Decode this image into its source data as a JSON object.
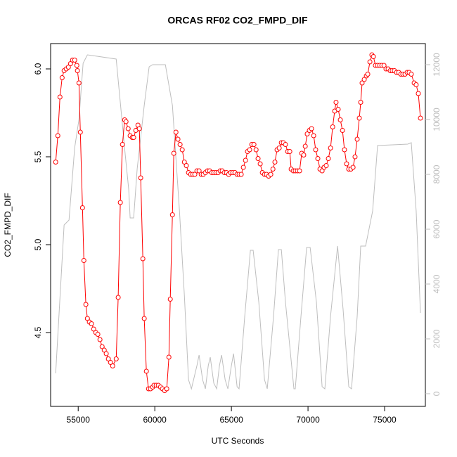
{
  "chart_data": {
    "type": "line",
    "title": "ORCAS RF02 CO2_FMPD_DIF",
    "x_label": "UTC Seconds",
    "y_label": "CO2_FMPD_DIF",
    "xlim": [
      53200,
      77660
    ],
    "xticks": [
      55000,
      60000,
      65000,
      70000,
      75000
    ],
    "ylim": [
      4.08,
      6.144
    ],
    "yticks": [
      4.5,
      {
        "value": 5.0,
        "label": "5.0"
      },
      5.5,
      {
        "value": 6.0,
        "label": "6.0"
      }
    ],
    "y2lim": [
      -462,
      12769
    ],
    "y2ticks": [
      0,
      2000,
      4000,
      6000,
      8000,
      10000,
      12000
    ],
    "series": [
      {
        "color": "#ff0000",
        "markers": true,
        "x": [
          53530,
          53670,
          53810,
          53950,
          54080,
          54220,
          54360,
          54500,
          54630,
          54770,
          54910,
          54950,
          55050,
          55140,
          55280,
          55370,
          55500,
          55600,
          55730,
          55870,
          56010,
          56150,
          56280,
          56420,
          56560,
          56700,
          56830,
          56970,
          57110,
          57250,
          57480,
          57610,
          57750,
          57890,
          58030,
          58120,
          58260,
          58390,
          58530,
          58620,
          58760,
          58900,
          58990,
          59080,
          59220,
          59310,
          59450,
          59590,
          59720,
          59860,
          59950,
          60090,
          60230,
          60370,
          60500,
          60640,
          60780,
          60920,
          61010,
          61150,
          61240,
          61380,
          61510,
          61650,
          61790,
          61930,
          62060,
          62200,
          62340,
          62480,
          62610,
          62750,
          62890,
          63030,
          63160,
          63300,
          63440,
          63580,
          63720,
          63850,
          63990,
          64130,
          64270,
          64400,
          64540,
          64680,
          64820,
          64950,
          65090,
          65230,
          65370,
          65500,
          65640,
          65780,
          65920,
          66050,
          66190,
          66330,
          66470,
          66610,
          66740,
          66880,
          67020,
          67160,
          67290,
          67430,
          67570,
          67710,
          67840,
          67980,
          68120,
          68260,
          68390,
          68530,
          68670,
          68810,
          68900,
          69040,
          69170,
          69310,
          69450,
          69590,
          69720,
          69820,
          69950,
          70090,
          70230,
          70370,
          70500,
          70640,
          70780,
          70920,
          71050,
          71190,
          71330,
          71470,
          71610,
          71740,
          71830,
          71970,
          72110,
          72250,
          72380,
          72520,
          72660,
          72800,
          72940,
          73070,
          73210,
          73350,
          73440,
          73530,
          73670,
          73810,
          73900,
          74040,
          74170,
          74270,
          74400,
          74540,
          74680,
          74820,
          74960,
          75090,
          75230,
          75370,
          75500,
          75640,
          75780,
          75920,
          76060,
          76190,
          76330,
          76470,
          76600,
          76740,
          76930,
          77060,
          77200,
          77340
        ],
        "values": [
          5.47,
          5.62,
          5.84,
          5.95,
          5.99,
          6.0,
          6.01,
          6.03,
          6.05,
          6.05,
          6.02,
          5.99,
          5.92,
          5.64,
          5.21,
          4.91,
          4.66,
          4.58,
          4.56,
          4.55,
          4.52,
          4.5,
          4.49,
          4.46,
          4.42,
          4.4,
          4.38,
          4.35,
          4.33,
          4.31,
          4.35,
          4.7,
          5.24,
          5.57,
          5.71,
          5.7,
          5.66,
          5.62,
          5.61,
          5.61,
          5.65,
          5.68,
          5.66,
          5.38,
          4.92,
          4.58,
          4.28,
          4.18,
          4.18,
          4.19,
          4.2,
          4.2,
          4.2,
          4.19,
          4.18,
          4.17,
          4.18,
          4.36,
          4.69,
          5.17,
          5.52,
          5.64,
          5.6,
          5.57,
          5.54,
          5.47,
          5.45,
          5.41,
          5.4,
          5.4,
          5.4,
          5.42,
          5.42,
          5.4,
          5.4,
          5.41,
          5.42,
          5.42,
          5.41,
          5.41,
          5.41,
          5.41,
          5.42,
          5.42,
          5.41,
          5.41,
          5.4,
          5.41,
          5.41,
          5.41,
          5.4,
          5.4,
          5.4,
          5.44,
          5.48,
          5.53,
          5.54,
          5.57,
          5.57,
          5.54,
          5.49,
          5.46,
          5.41,
          5.4,
          5.4,
          5.39,
          5.4,
          5.43,
          5.47,
          5.54,
          5.55,
          5.58,
          5.58,
          5.57,
          5.53,
          5.53,
          5.43,
          5.42,
          5.42,
          5.42,
          5.42,
          5.52,
          5.51,
          5.56,
          5.63,
          5.65,
          5.66,
          5.62,
          5.54,
          5.49,
          5.43,
          5.42,
          5.44,
          5.45,
          5.49,
          5.55,
          5.67,
          5.76,
          5.81,
          5.77,
          5.71,
          5.65,
          5.54,
          5.46,
          5.43,
          5.43,
          5.44,
          5.5,
          5.6,
          5.72,
          5.81,
          5.92,
          5.94,
          5.96,
          5.97,
          6.04,
          6.08,
          6.07,
          6.02,
          6.02,
          6.02,
          6.02,
          6.02,
          6.0,
          6.0,
          5.99,
          5.99,
          5.99,
          5.98,
          5.98,
          5.97,
          5.97,
          5.97,
          5.98,
          5.98,
          5.97,
          5.92,
          5.91,
          5.86,
          5.72
        ]
      },
      {
        "color": "#bebebe",
        "axis": "y2",
        "markers": false,
        "x": [
          53530,
          54080,
          54400,
          54770,
          55050,
          55320,
          55600,
          57480,
          58070,
          58300,
          58390,
          58620,
          58850,
          59310,
          59630,
          59860,
          60690,
          61150,
          61610,
          61930,
          62200,
          62390,
          62750,
          62890,
          63120,
          63300,
          63490,
          63620,
          63850,
          64040,
          64220,
          64360,
          64590,
          64770,
          65000,
          65140,
          65370,
          65500,
          65870,
          66240,
          66420,
          66790,
          67160,
          67340,
          67750,
          68070,
          68260,
          68530,
          69080,
          69170,
          69540,
          69910,
          70140,
          70550,
          70920,
          71100,
          71470,
          71930,
          72290,
          72660,
          72840,
          73210,
          73440,
          73760,
          74220,
          74540,
          76510,
          76740,
          77060,
          77340
        ],
        "values": [
          744,
          6154,
          6333,
          8974,
          10000,
          12051,
          12359,
          12205,
          8718,
          7436,
          6410,
          6410,
          8205,
          10513,
          11923,
          12000,
          12000,
          10513,
          6667,
          3590,
          513,
          179,
          1026,
          1410,
          513,
          179,
          1026,
          1333,
          385,
          179,
          1026,
          1410,
          513,
          179,
          1026,
          1462,
          256,
          179,
          2821,
          5231,
          5231,
          3333,
          513,
          179,
          2821,
          5256,
          5256,
          3333,
          179,
          179,
          2821,
          5333,
          5333,
          3333,
          256,
          179,
          2821,
          5385,
          3077,
          256,
          179,
          2821,
          5385,
          5385,
          6667,
          9051,
          9103,
          9154,
          6667,
          2949
        ]
      }
    ]
  }
}
